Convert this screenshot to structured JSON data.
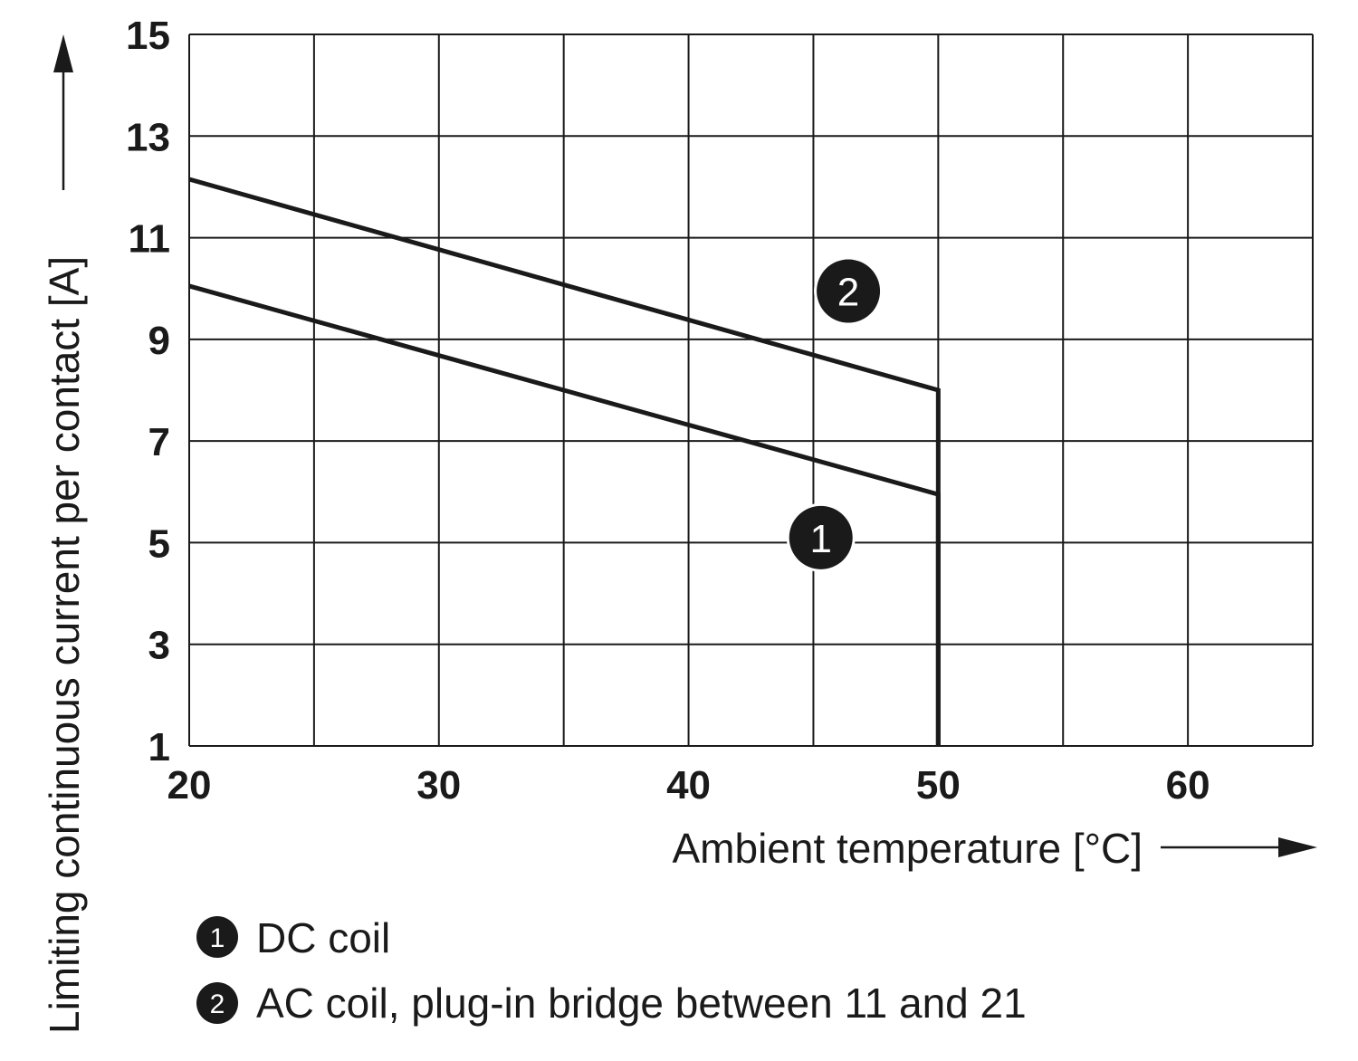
{
  "chart_data": {
    "type": "line",
    "xlabel": "Ambient temperature [°C]",
    "ylabel": "Limiting continuous current per contact [A]",
    "xlim": [
      20,
      65
    ],
    "ylim": [
      1,
      15
    ],
    "x_ticks": [
      "20",
      "30",
      "40",
      "50",
      "60"
    ],
    "y_ticks": [
      "1",
      "3",
      "5",
      "7",
      "9",
      "11",
      "13",
      "15"
    ],
    "grid": true,
    "series": [
      {
        "name": "DC coil",
        "marker": "1",
        "x": [
          20,
          50,
          50
        ],
        "y": [
          10.05,
          5.95,
          1
        ]
      },
      {
        "name": "AC coil, plug-in bridge between 11 and 21",
        "marker": "2",
        "x": [
          20,
          50,
          50
        ],
        "y": [
          12.15,
          8,
          1
        ]
      }
    ],
    "legend": {
      "placement": "bottom-left",
      "items": [
        {
          "marker": "1",
          "label": "DC coil"
        },
        {
          "marker": "2",
          "label": "AC coil, plug-in bridge between 11 and 21"
        }
      ]
    },
    "colors": {
      "line": "#1a1a1a",
      "marker_fill": "#1a1a1a",
      "marker_text": "#ffffff"
    }
  }
}
